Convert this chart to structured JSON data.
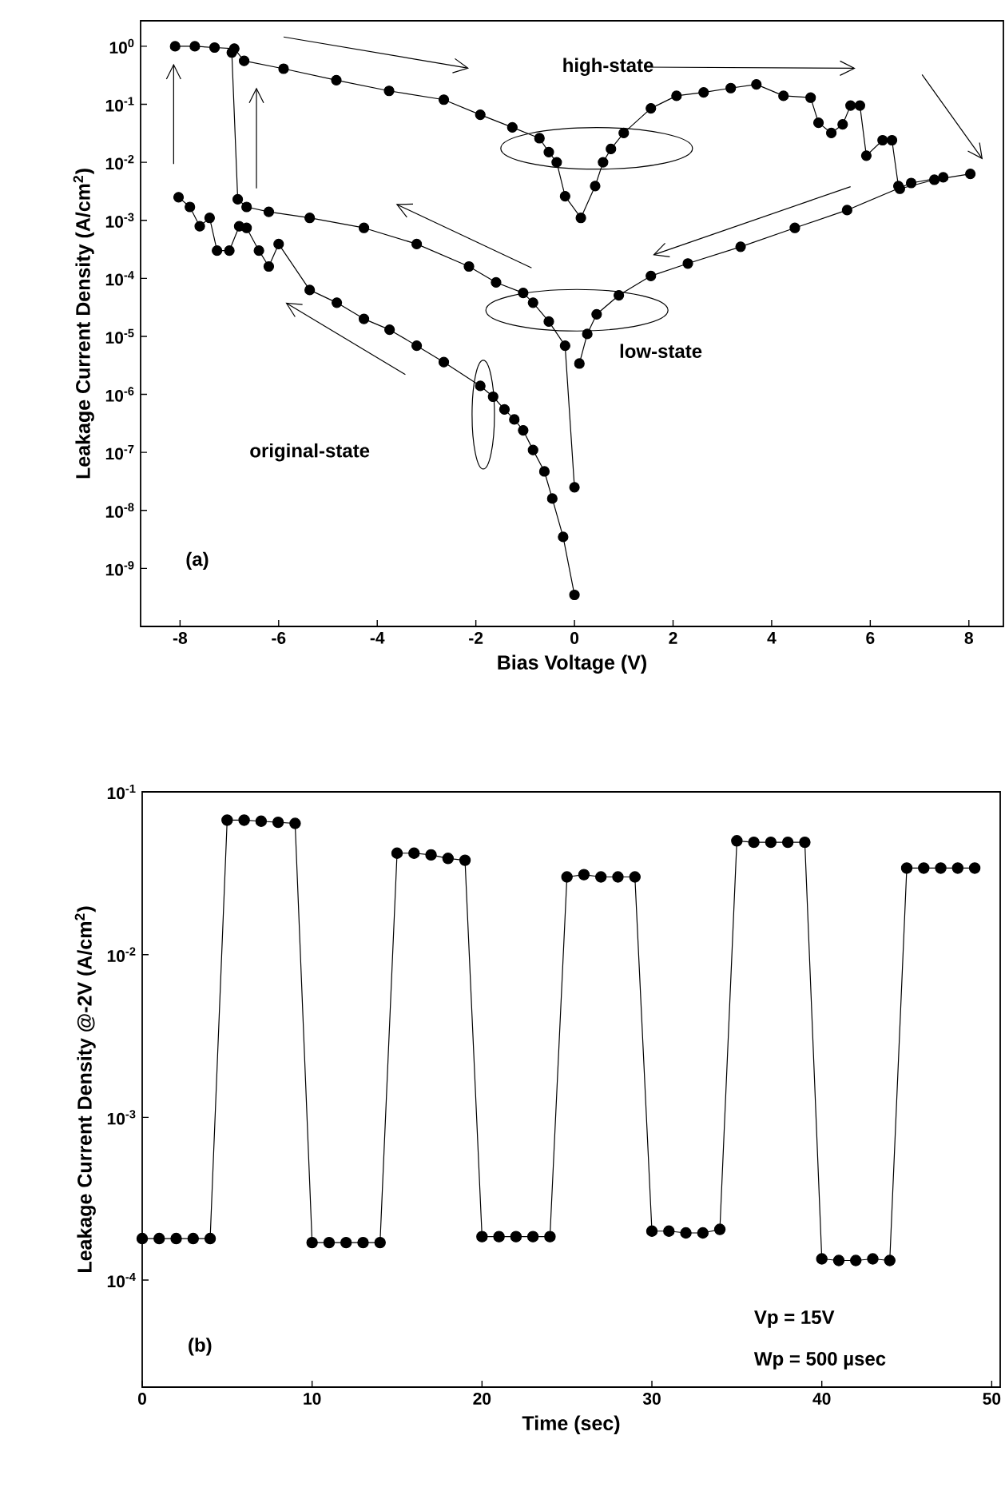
{
  "chart_data": [
    {
      "type": "line",
      "xlabel": "Bias Voltage (V)",
      "ylabel": "Leakage Current Density (A/cm$^{2}$)",
      "log": "y",
      "marker": "circle",
      "line_style": "solid",
      "xlim": [
        -8.8,
        8.7
      ],
      "ylim": [
        1e-10,
        2.75
      ],
      "xticks": [
        -8,
        -6,
        -4,
        -2,
        0,
        2,
        4,
        6,
        8
      ],
      "yticks": [
        {
          "value": 1e-09,
          "label": "10$^{-9}$"
        },
        {
          "value": 1e-08,
          "label": "10$^{-8}$"
        },
        {
          "value": 1e-07,
          "label": "10$^{-7}$"
        },
        {
          "value": 1e-06,
          "label": "10$^{-6}$"
        },
        {
          "value": 1e-05,
          "label": "10$^{-5}$"
        },
        {
          "value": 0.0001,
          "label": "10$^{-4}$"
        },
        {
          "value": 0.001,
          "label": "10$^{-3}$"
        },
        {
          "value": 0.01,
          "label": "10$^{-2}$"
        },
        {
          "value": 0.1,
          "label": "10$^{-1}$"
        },
        {
          "value": 1,
          "label": "10$^{0}$"
        }
      ],
      "annotations": [
        "high-state",
        "low-state",
        "original-state",
        "(a)"
      ],
      "series": [
        {
          "color": "#000000",
          "x": [
            0,
            -0.23,
            -0.45,
            -0.61,
            -0.84,
            -1.04,
            -1.22,
            -1.42,
            -1.65,
            -1.91,
            -2.65,
            -3.2,
            -3.75,
            -4.27,
            -4.82,
            -5.37,
            -6.0,
            -6.2,
            -6.4,
            -6.65,
            -6.8,
            -7.0,
            -7.25,
            -7.4,
            -7.6,
            -7.8,
            -8.03
          ],
          "values": [
            3.5e-10,
            3.5e-09,
            1.6e-08,
            4.7e-08,
            1.1e-07,
            2.4e-07,
            3.7e-07,
            5.5e-07,
            9.1e-07,
            1.4e-06,
            3.6e-06,
            6.9e-06,
            1.3e-05,
            2e-05,
            3.8e-05,
            6.3e-05,
            0.00039,
            0.00016,
            0.0003,
            0.00074,
            0.00079,
            0.0003,
            0.0003,
            0.0011,
            0.00079,
            0.0017,
            0.0025
          ]
        },
        {
          "color": "#000000",
          "x": [
            -8.1,
            -7.7,
            -7.3,
            -6.9,
            -6.7,
            -5.9,
            -4.83,
            -3.76,
            -2.65,
            -1.91,
            -1.26,
            -0.71,
            -0.52,
            -0.36,
            -0.19,
            0.13,
            0.42,
            0.58,
            0.74,
            1.0,
            1.55,
            2.07,
            2.62,
            3.17,
            3.69,
            4.24,
            4.79,
            4.95,
            5.21,
            5.44,
            5.6,
            5.79,
            5.92,
            6.25,
            6.44,
            6.57
          ],
          "values": [
            1.0,
            1.0,
            0.95,
            0.91,
            0.56,
            0.41,
            0.26,
            0.17,
            0.12,
            0.066,
            0.04,
            0.026,
            0.015,
            0.01,
            0.0026,
            0.0011,
            0.0039,
            0.01,
            0.017,
            0.032,
            0.085,
            0.14,
            0.16,
            0.19,
            0.22,
            0.14,
            0.13,
            0.048,
            0.032,
            0.045,
            0.095,
            0.095,
            0.013,
            0.024,
            0.024,
            0.0039
          ]
        },
        {
          "color": "#000000",
          "x": [
            6.6,
            7.3,
            8.03
          ],
          "values": [
            0.0035,
            0.005,
            0.0063
          ]
        },
        {
          "color": "#000000",
          "x": [
            7.48,
            6.83,
            5.53,
            4.47,
            3.37,
            2.3,
            1.55,
            0.9,
            0.45,
            0.26,
            0.1
          ],
          "values": [
            0.0055,
            0.0044,
            0.0015,
            0.00074,
            0.00035,
            0.00018,
            0.00011,
            5.1e-05,
            2.4e-05,
            1.1e-05,
            3.4e-06
          ]
        },
        {
          "color": "#000000",
          "x": [
            0,
            -0.19,
            -0.52,
            -0.84,
            -1.04,
            -1.59,
            -2.14,
            -3.2,
            -4.27,
            -5.37,
            -6.2,
            -6.65,
            -6.83,
            -6.95
          ],
          "values": [
            2.5e-08,
            6.9e-06,
            1.8e-05,
            3.8e-05,
            5.6e-05,
            8.5e-05,
            0.00016,
            0.00039,
            0.00074,
            0.0011,
            0.0014,
            0.0017,
            0.0023,
            0.78
          ]
        }
      ]
    },
    {
      "type": "line",
      "xlabel": "Time (sec)",
      "ylabel": "Leakage Current Density @-2V (A/cm$^{2}$)",
      "log": "y",
      "marker": "circle",
      "line_style": "solid",
      "xlim": [
        0,
        50.5
      ],
      "ylim": [
        2.2e-05,
        0.1
      ],
      "xticks": [
        0,
        10,
        20,
        30,
        40,
        50
      ],
      "yticks": [
        {
          "value": 0.0001,
          "label": "10$^{-4}$"
        },
        {
          "value": 0.001,
          "label": "10$^{-3}$"
        },
        {
          "value": 0.01,
          "label": "10$^{-2}$"
        },
        {
          "value": 0.1,
          "label": "10$^{-1}$"
        }
      ],
      "annotations": [
        "(b)",
        "Vp = 15V",
        "Wp = 500 µsec"
      ],
      "series": [
        {
          "color": "#000000",
          "x": [
            0,
            1,
            2,
            3,
            4,
            5,
            6,
            7,
            8,
            9,
            10,
            11,
            12,
            13,
            14,
            15,
            16,
            17,
            18,
            19,
            20,
            21,
            22,
            23,
            24,
            25,
            26,
            27,
            28,
            29,
            30,
            31,
            32,
            33,
            34,
            35,
            36,
            37,
            38,
            39,
            40,
            41,
            42,
            43,
            44,
            45,
            46,
            47,
            48,
            49
          ],
          "values": [
            0.00018,
            0.00018,
            0.00018,
            0.00018,
            0.00018,
            0.067,
            0.067,
            0.066,
            0.065,
            0.064,
            0.00017,
            0.00017,
            0.00017,
            0.00017,
            0.00017,
            0.042,
            0.042,
            0.041,
            0.039,
            0.038,
            0.000185,
            0.000185,
            0.000185,
            0.000185,
            0.000185,
            0.03,
            0.031,
            0.03,
            0.03,
            0.03,
            0.0002,
            0.0002,
            0.000195,
            0.000195,
            0.000205,
            0.05,
            0.049,
            0.049,
            0.049,
            0.049,
            0.000135,
            0.000132,
            0.000132,
            0.000135,
            0.000132,
            0.034,
            0.034,
            0.034,
            0.034,
            0.034
          ]
        }
      ]
    }
  ]
}
